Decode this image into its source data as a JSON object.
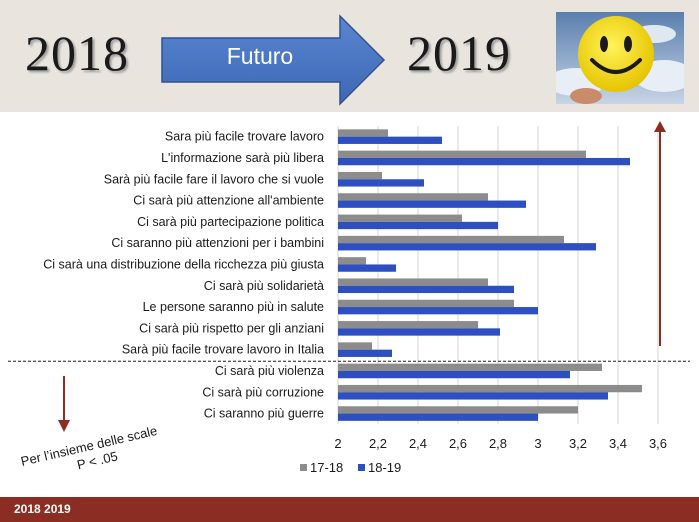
{
  "header": {
    "year_from": "2018",
    "arrow_label": "Futuro",
    "year_to": "2019"
  },
  "footer": {
    "label": "2018 2019"
  },
  "note": {
    "line1": "Per l’insieme delle scale",
    "line2": "P < .05"
  },
  "colors": {
    "series_1": "#8c8c8c",
    "series_2": "#2d4fc0",
    "trend_arrows": "#8b2d23",
    "header_arrow": "#4472c4",
    "footer": "#8b2d23"
  },
  "chart_data": {
    "type": "bar",
    "orientation": "horizontal",
    "title": "",
    "xlabel": "",
    "ylabel": "",
    "xlim": [
      2,
      3.6
    ],
    "xticks": [
      "2",
      "2,2",
      "2,4",
      "2,6",
      "2,8",
      "3",
      "3,2",
      "3,4",
      "3,6"
    ],
    "grid": "vertical",
    "legend_position": "bottom",
    "categories": [
      "Sara più facile trovare lavoro",
      "L'informazione sarà più libera",
      "Sarà più facile fare il lavoro che si vuole",
      "Ci sarà più attenzione all'ambiente",
      "Ci sarà più partecipazione politica",
      "Ci saranno più attenzioni per i bambini",
      "Ci sarà una distribuzione della ricchezza più giusta",
      "Ci sarà più solidarietà",
      "Le persone saranno più in salute",
      "Ci sarà più rispetto per gli anziani",
      "Sarà più facile trovare lavoro in Italia",
      "Ci sarà più violenza",
      "Ci sarà più corruzione",
      "Ci saranno più guerre"
    ],
    "series": [
      {
        "name": "17-18",
        "color": "#8c8c8c",
        "values": [
          2.25,
          3.24,
          2.22,
          2.75,
          2.62,
          3.13,
          2.14,
          2.75,
          2.88,
          2.7,
          2.17,
          3.32,
          3.52,
          3.2
        ]
      },
      {
        "name": "18-19",
        "color": "#2d4fc0",
        "values": [
          2.52,
          3.46,
          2.43,
          2.94,
          2.8,
          3.29,
          2.29,
          2.88,
          3.0,
          2.81,
          2.27,
          3.16,
          3.35,
          3.0
        ]
      }
    ],
    "separator_after_category": 10
  }
}
